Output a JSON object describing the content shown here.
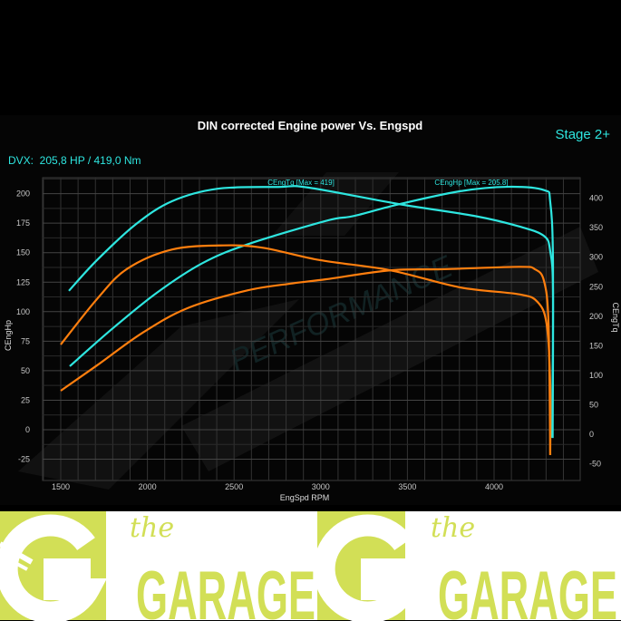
{
  "chart_data": {
    "type": "line",
    "title": "DIN corrected Engine power Vs. Engspd",
    "stage_label": "Stage 2+",
    "summary": "DVX:  205,8 HP / 419,0 Nm",
    "xlabel": "EngSpd RPM",
    "ylabel_left": "CEngHp",
    "ylabel_right": "CEngTq",
    "xlim": [
      1400,
      4500
    ],
    "ylim_left": [
      -35,
      222
    ],
    "ylim_right": [
      -60,
      445
    ],
    "xticks": [
      1500,
      2000,
      2500,
      3000,
      3500,
      4000
    ],
    "yticks_left": [
      -25,
      0,
      25,
      50,
      75,
      100,
      125,
      150,
      175,
      200
    ],
    "yticks_right": [
      -50,
      0,
      50,
      100,
      150,
      200,
      250,
      300,
      350,
      400
    ],
    "grid": true,
    "annotations": [
      "CEngTq [Max = 419]",
      "CEngHp [Max = 205.8]"
    ],
    "series": [
      {
        "axis": "right",
        "color": "#2ee6e0",
        "x": [
          1547,
          1709,
          1934,
          2143,
          2405,
          2755,
          2928,
          3451,
          3885,
          4146,
          4288,
          4324,
          4340,
          4335
        ],
        "y": [
          243,
          295,
          356,
          395,
          416,
          419,
          418,
          390,
          370,
          352,
          336,
          310,
          240,
          -6
        ]
      },
      {
        "axis": "left",
        "color": "#2ee6e0",
        "x": [
          1552,
          1793,
          2054,
          2316,
          2577,
          3032,
          3189,
          3451,
          3801,
          4078,
          4288,
          4324,
          4340,
          4338
        ],
        "y": [
          53.8,
          85,
          116,
          141,
          157,
          177,
          181,
          191,
          202,
          205.8,
          203,
          193,
          141,
          -7
        ]
      },
      {
        "axis": "right",
        "color": "#ff7f0e",
        "x": [
          1500,
          1709,
          1882,
          2143,
          2441,
          2666,
          2996,
          3399,
          3801,
          4146,
          4251,
          4303,
          4324,
          4324
        ],
        "y": [
          152,
          229,
          280,
          313,
          320,
          316,
          295,
          278,
          249,
          237,
          224,
          187,
          86,
          -35
        ]
      },
      {
        "axis": "left",
        "color": "#ff7f0e",
        "x": [
          1500,
          1709,
          1971,
          2232,
          2577,
          2839,
          3032,
          3399,
          3712,
          4146,
          4235,
          4288,
          4314,
          4324
        ],
        "y": [
          33,
          54.5,
          82,
          103,
          118,
          124,
          127.5,
          135,
          136,
          138,
          136,
          126,
          90,
          -21.5
        ]
      }
    ]
  },
  "watermark": {
    "text": "PERFORMANCE",
    "mark": "DVX"
  },
  "logo": {
    "small": "the",
    "big": "GARAGE",
    "color": "#d2df56"
  }
}
